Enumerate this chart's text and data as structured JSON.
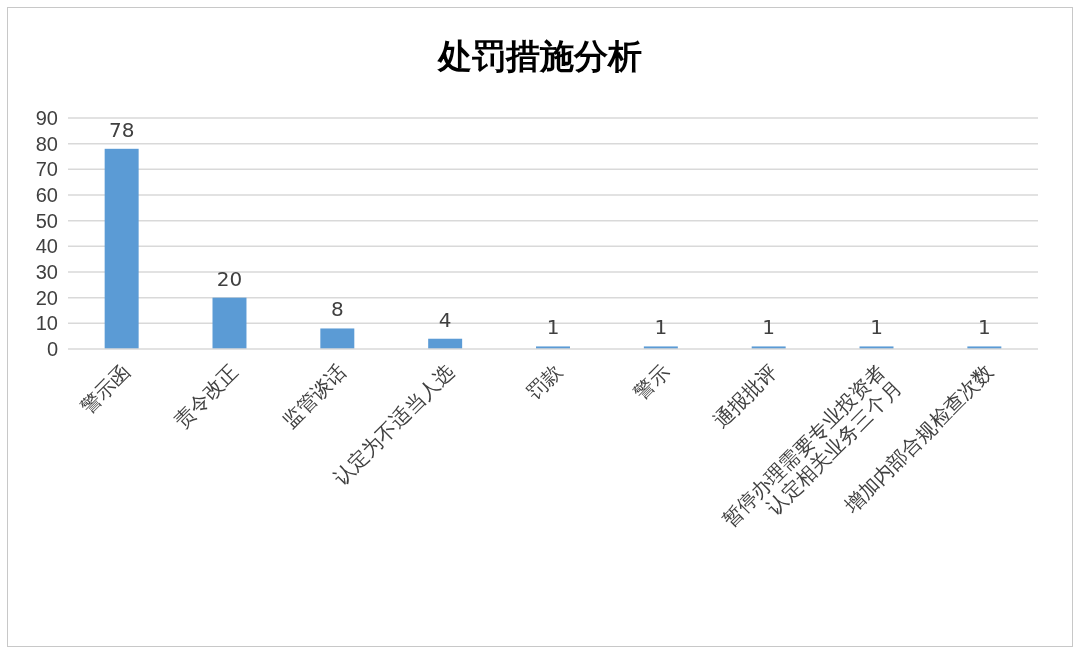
{
  "chart_data": {
    "type": "bar",
    "title": "处罚措施分析",
    "categories": [
      "警示函",
      "责令改正",
      "监管谈话",
      "认定为不适当人选",
      "罚款",
      "警示",
      "通报批评",
      "暂停办理需要专业投资者\n认定相关业务三个月",
      "增加内部合规检查次数"
    ],
    "values": [
      78,
      20,
      8,
      4,
      1,
      1,
      1,
      1,
      1
    ],
    "color": "#5b9bd5",
    "ylim": [
      0,
      90
    ],
    "yticks": [
      0,
      10,
      20,
      30,
      40,
      50,
      60,
      70,
      80,
      90
    ],
    "grid": "y",
    "data_labels": true
  }
}
